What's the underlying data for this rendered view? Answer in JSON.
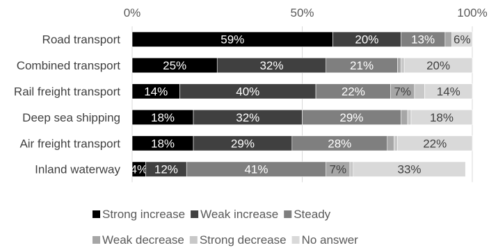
{
  "chart_data": {
    "type": "bar",
    "orientation": "horizontal",
    "stacked": true,
    "title": "",
    "xlabel": "",
    "ylabel": "",
    "xlim": [
      0,
      100
    ],
    "ticks": [
      "0%",
      "50%",
      "100%"
    ],
    "axis_position": "top",
    "grid": true,
    "legend_position": "bottom",
    "categories": [
      "Road transport",
      "Combined transport",
      "Rail freight transport",
      "Deep sea shipping",
      "Air freight transport",
      "Inland waterway"
    ],
    "series": [
      {
        "name": "Strong increase",
        "color": "#000000",
        "values": [
          59,
          25,
          14,
          18,
          18,
          4
        ],
        "labels": [
          "59%",
          "25%",
          "14%",
          "18%",
          "18%",
          "4%"
        ]
      },
      {
        "name": "Weak increase",
        "color": "#404040",
        "values": [
          20,
          32,
          40,
          32,
          29,
          12
        ],
        "labels": [
          "20%",
          "32%",
          "40%",
          "32%",
          "29%",
          "12%"
        ]
      },
      {
        "name": "Steady",
        "color": "#7f7f7f",
        "values": [
          13,
          21,
          22,
          29,
          28,
          41
        ],
        "labels": [
          "13%",
          "21%",
          "22%",
          "29%",
          "28%",
          "41%"
        ]
      },
      {
        "name": "Weak decrease",
        "color": "#a6a6a6",
        "values": [
          2,
          1,
          7,
          2,
          2,
          7
        ],
        "labels": [
          "",
          "",
          "7%",
          "",
          "",
          "7%"
        ]
      },
      {
        "name": "Strong decrease",
        "color": "#c8c8c8",
        "values": [
          0,
          1,
          3,
          1,
          1,
          1
        ],
        "labels": [
          "",
          "",
          "",
          "",
          "",
          ""
        ]
      },
      {
        "name": "No answer",
        "color": "#d9d9d9",
        "values": [
          6,
          20,
          14,
          18,
          22,
          33
        ],
        "labels": [
          "6%",
          "20%",
          "14%",
          "18%",
          "22%",
          "33%"
        ]
      }
    ]
  }
}
